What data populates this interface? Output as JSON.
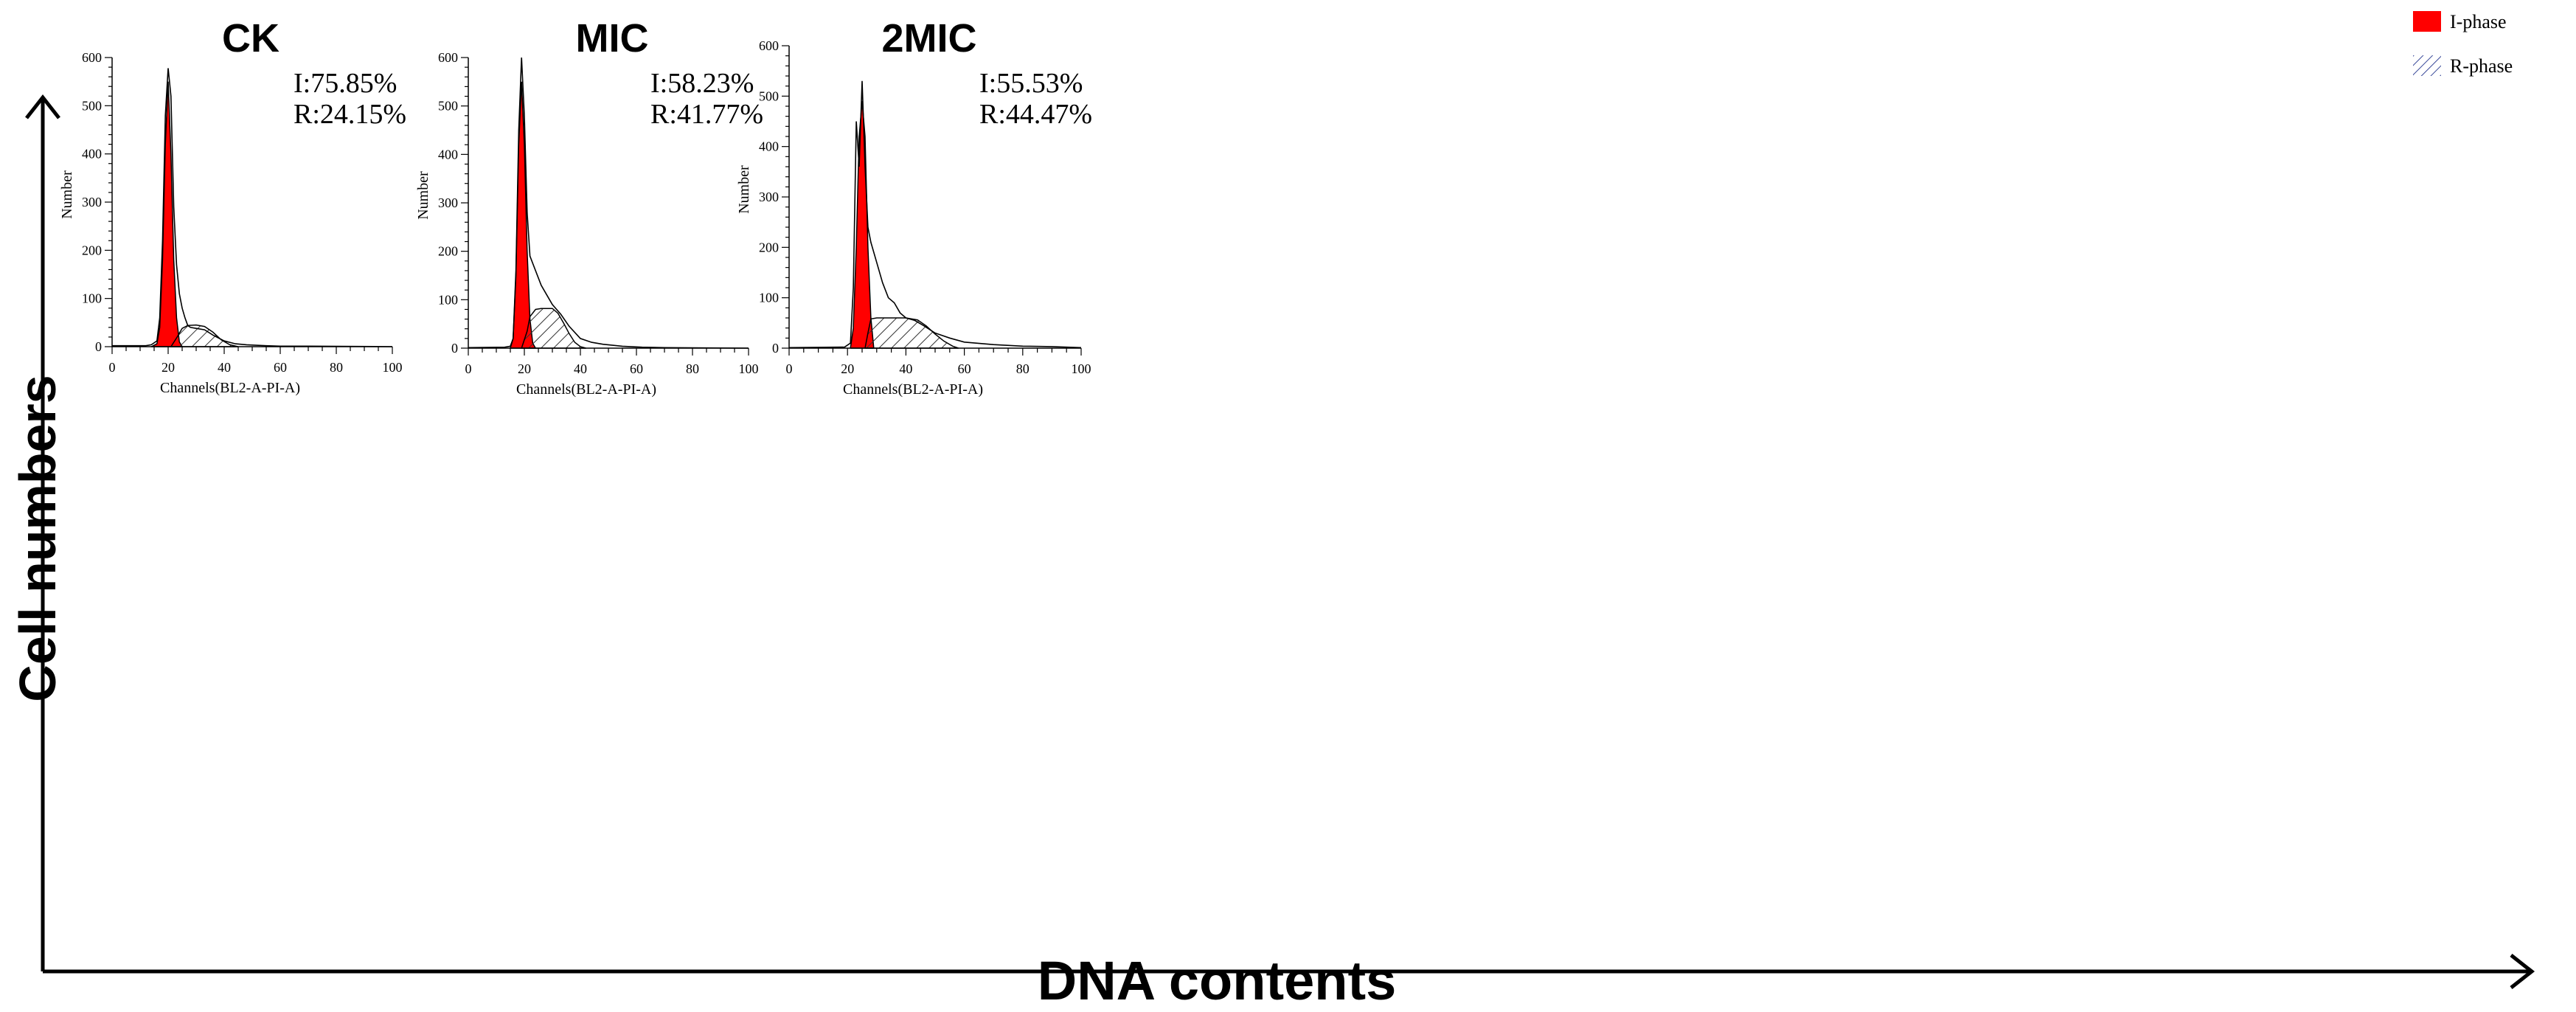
{
  "figure": {
    "y_axis_title": "Cell numbers",
    "x_axis_title": "DNA contents",
    "legend": [
      {
        "label": "I-phase",
        "color": "#ff0000",
        "pattern": "solid"
      },
      {
        "label": "R-phase",
        "color": "#3a4a9a",
        "pattern": "hatch"
      }
    ]
  },
  "chart_data": [
    {
      "type": "area",
      "title": "CK",
      "xlabel": "Channels(BL2-A-PI-A)",
      "ylabel": "Number",
      "xlim": [
        0,
        100
      ],
      "ylim": [
        0,
        600
      ],
      "xticks": [
        0,
        20,
        40,
        60,
        80,
        100
      ],
      "yticks": [
        0,
        100,
        200,
        300,
        400,
        500,
        600
      ],
      "annotation": [
        "I:75.85%",
        "R:24.15%"
      ],
      "series": [
        {
          "name": "I-phase",
          "style": "red-fill",
          "points": [
            [
              14,
              0
            ],
            [
              16,
              6
            ],
            [
              17,
              40
            ],
            [
              18,
              180
            ],
            [
              19,
              420
            ],
            [
              20,
              550
            ],
            [
              21,
              400
            ],
            [
              22,
              180
            ],
            [
              23,
              60
            ],
            [
              24,
              10
            ],
            [
              25,
              0
            ]
          ]
        },
        {
          "name": "R-phase",
          "style": "hatch",
          "points": [
            [
              21,
              0
            ],
            [
              23,
              18
            ],
            [
              25,
              38
            ],
            [
              27,
              44
            ],
            [
              30,
              45
            ],
            [
              33,
              42
            ],
            [
              36,
              30
            ],
            [
              39,
              14
            ],
            [
              42,
              4
            ],
            [
              45,
              0
            ]
          ]
        },
        {
          "name": "Histogram",
          "style": "line",
          "points": [
            [
              0,
              2
            ],
            [
              12,
              2
            ],
            [
              14,
              4
            ],
            [
              16,
              12
            ],
            [
              17,
              60
            ],
            [
              18,
              220
            ],
            [
              19,
              480
            ],
            [
              20,
              578
            ],
            [
              21,
              520
            ],
            [
              22,
              290
            ],
            [
              23,
              170
            ],
            [
              24,
              110
            ],
            [
              25,
              80
            ],
            [
              26,
              60
            ],
            [
              27,
              44
            ],
            [
              28,
              40
            ],
            [
              30,
              38
            ],
            [
              33,
              35
            ],
            [
              36,
              24
            ],
            [
              40,
              12
            ],
            [
              44,
              6
            ],
            [
              48,
              4
            ],
            [
              55,
              2
            ],
            [
              60,
              1
            ],
            [
              70,
              1
            ],
            [
              100,
              0
            ]
          ]
        }
      ]
    },
    {
      "type": "area",
      "title": "MIC",
      "xlabel": "Channels(BL2-A-PI-A)",
      "ylabel": "Number",
      "xlim": [
        0,
        100
      ],
      "ylim": [
        0,
        600
      ],
      "xticks": [
        0,
        20,
        40,
        60,
        80,
        100
      ],
      "yticks": [
        0,
        100,
        200,
        300,
        400,
        500,
        600
      ],
      "annotation": [
        "I:58.23%",
        "R:41.77%"
      ],
      "series": [
        {
          "name": "I-phase",
          "style": "red-fill",
          "points": [
            [
              15,
              0
            ],
            [
              16,
              20
            ],
            [
              17,
              150
            ],
            [
              18,
              420
            ],
            [
              19,
              550
            ],
            [
              20,
              420
            ],
            [
              21,
              200
            ],
            [
              22,
              60
            ],
            [
              23,
              10
            ],
            [
              24,
              0
            ]
          ]
        },
        {
          "name": "R-phase",
          "style": "hatch",
          "points": [
            [
              19,
              0
            ],
            [
              21,
              35
            ],
            [
              22,
              65
            ],
            [
              24,
              80
            ],
            [
              26,
              82
            ],
            [
              30,
              82
            ],
            [
              32,
              72
            ],
            [
              34,
              52
            ],
            [
              36,
              30
            ],
            [
              38,
              12
            ],
            [
              40,
              3
            ],
            [
              42,
              0
            ]
          ]
        },
        {
          "name": "Histogram",
          "style": "line",
          "points": [
            [
              0,
              1
            ],
            [
              13,
              2
            ],
            [
              15,
              4
            ],
            [
              16,
              20
            ],
            [
              17,
              160
            ],
            [
              18,
              450
            ],
            [
              19,
              600
            ],
            [
              20,
              480
            ],
            [
              21,
              280
            ],
            [
              22,
              190
            ],
            [
              24,
              160
            ],
            [
              26,
              130
            ],
            [
              28,
              110
            ],
            [
              30,
              90
            ],
            [
              33,
              70
            ],
            [
              36,
              45
            ],
            [
              40,
              20
            ],
            [
              44,
              12
            ],
            [
              48,
              8
            ],
            [
              55,
              4
            ],
            [
              62,
              2
            ],
            [
              70,
              1
            ],
            [
              100,
              0
            ]
          ]
        }
      ]
    },
    {
      "type": "area",
      "title": "2MIC",
      "xlabel": "Channels(BL2-A-PI-A)",
      "ylabel": "Number",
      "xlim": [
        0,
        100
      ],
      "ylim": [
        0,
        600
      ],
      "xticks": [
        0,
        20,
        40,
        60,
        80,
        100
      ],
      "yticks": [
        0,
        100,
        200,
        300,
        400,
        500,
        600
      ],
      "annotation": [
        "I:55.53%",
        "R:44.47%"
      ],
      "series": [
        {
          "name": "I-phase",
          "style": "red-fill",
          "points": [
            [
              21,
              0
            ],
            [
              22,
              40
            ],
            [
              23,
              200
            ],
            [
              24,
              420
            ],
            [
              25,
              490
            ],
            [
              26,
              420
            ],
            [
              27,
              200
            ],
            [
              28,
              60
            ],
            [
              29,
              0
            ]
          ]
        },
        {
          "name": "R-phase",
          "style": "hatch",
          "points": [
            [
              26,
              0
            ],
            [
              27,
              30
            ],
            [
              28,
              58
            ],
            [
              30,
              60
            ],
            [
              40,
              60
            ],
            [
              44,
              56
            ],
            [
              47,
              44
            ],
            [
              50,
              28
            ],
            [
              53,
              14
            ],
            [
              56,
              4
            ],
            [
              58,
              0
            ]
          ]
        },
        {
          "name": "Histogram",
          "style": "line",
          "points": [
            [
              0,
              1
            ],
            [
              19,
              2
            ],
            [
              21,
              10
            ],
            [
              22,
              120
            ],
            [
              23,
              450
            ],
            [
              24,
              360
            ],
            [
              25,
              530
            ],
            [
              26,
              360
            ],
            [
              27,
              240
            ],
            [
              28,
              210
            ],
            [
              30,
              170
            ],
            [
              32,
              130
            ],
            [
              34,
              100
            ],
            [
              36,
              90
            ],
            [
              38,
              70
            ],
            [
              40,
              60
            ],
            [
              43,
              55
            ],
            [
              46,
              45
            ],
            [
              50,
              30
            ],
            [
              55,
              20
            ],
            [
              60,
              12
            ],
            [
              70,
              7
            ],
            [
              80,
              4
            ],
            [
              90,
              3
            ],
            [
              100,
              1
            ]
          ]
        }
      ]
    }
  ]
}
